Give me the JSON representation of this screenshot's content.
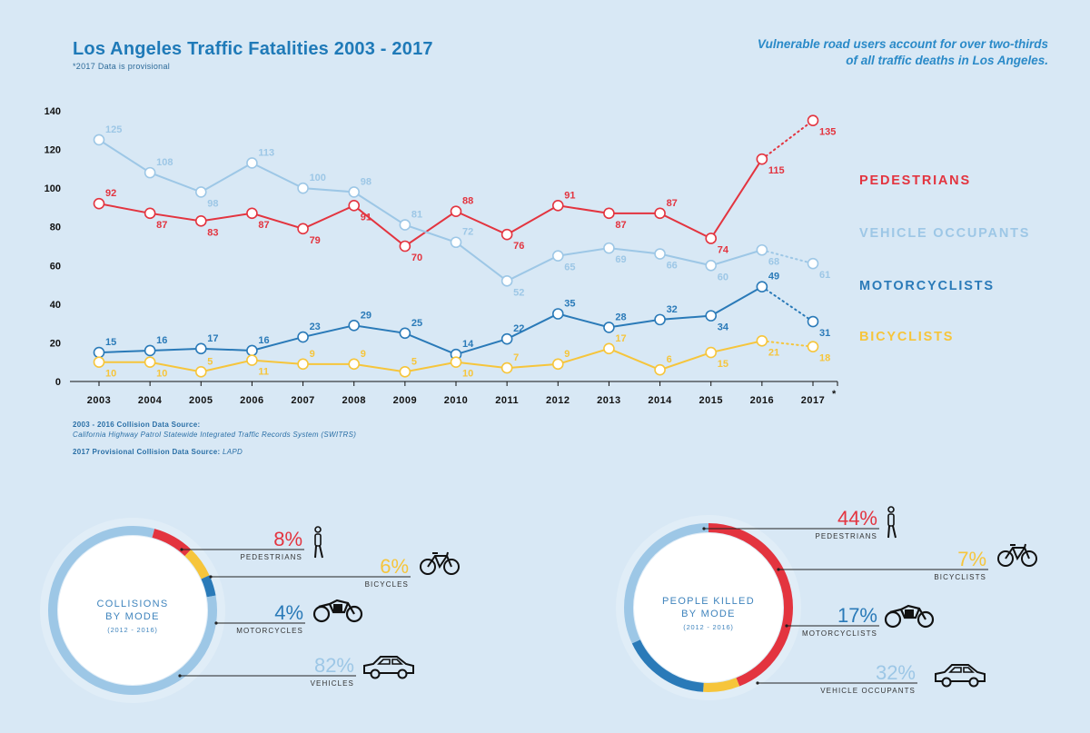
{
  "header": {
    "title": "Los Angeles Traffic Fatalities 2003 - 2017",
    "subtitle": "*2017 Data is provisional",
    "tagline_line1": "Vulnerable road users account for over two-thirds",
    "tagline_line2": "of all traffic deaths in Los Angeles."
  },
  "sources": {
    "line1": "2003 - 2016 Collision Data Source:",
    "line2": "California Highway Patrol Statewide Integrated Traffic Records System (SWITRS)",
    "line3_label": "2017 Provisional Collision Data Source:",
    "line3_value": "LAPD"
  },
  "colors": {
    "pedestrians": "#e3343f",
    "vehicle_occupants": "#9dc7e6",
    "motorcyclists": "#2a7ab8",
    "bicyclists": "#f6c53b",
    "axis": "#111111"
  },
  "chart_data": [
    {
      "type": "line",
      "title": "Los Angeles Traffic Fatalities 2003 - 2017",
      "x": [
        "2003",
        "2004",
        "2005",
        "2006",
        "2007",
        "2008",
        "2009",
        "2010",
        "2011",
        "2012",
        "2013",
        "2014",
        "2015",
        "2016",
        "2017"
      ],
      "x_footnote": "*",
      "y_ticks": [
        0,
        20,
        40,
        60,
        80,
        100,
        120,
        140
      ],
      "ylim": [
        0,
        140
      ],
      "legend_placement": "right",
      "series": [
        {
          "name": "PEDESTRIANS",
          "key": "pedestrians",
          "values": [
            92,
            87,
            83,
            87,
            79,
            91,
            70,
            88,
            76,
            91,
            87,
            87,
            74,
            115,
            135
          ],
          "labels": [
            "92",
            "87",
            "83",
            "87",
            "79",
            "91",
            "70",
            "88",
            "76",
            "91",
            "87",
            "87",
            "74",
            "115",
            "135"
          ]
        },
        {
          "name": "VEHICLE OCCUPANTS",
          "key": "vehicle_occupants",
          "values": [
            125,
            108,
            98,
            113,
            100,
            98,
            81,
            72,
            52,
            65,
            69,
            66,
            60,
            68,
            61
          ],
          "labels": [
            "125",
            "108",
            "98",
            "113",
            "100",
            "98",
            "81",
            "72",
            "52",
            "65",
            "69",
            "66",
            "60",
            "68",
            "61"
          ]
        },
        {
          "name": "MOTORCYCLISTS",
          "key": "motorcyclists",
          "values": [
            15,
            16,
            17,
            16,
            23,
            29,
            25,
            14,
            22,
            35,
            28,
            32,
            34,
            49,
            31
          ],
          "labels": [
            "15",
            "16",
            "17",
            "16",
            "23",
            "29",
            "25",
            "14",
            "22",
            "35",
            "28",
            "32",
            "34",
            "49",
            "31"
          ]
        },
        {
          "name": "BICYCLISTS",
          "key": "bicyclists",
          "values": [
            10,
            10,
            5,
            11,
            9,
            9,
            5,
            10,
            7,
            9,
            17,
            6,
            15,
            21,
            18
          ],
          "labels": [
            "10",
            "10",
            "5",
            "11",
            "9",
            "9",
            "5",
            "10",
            "7",
            "9",
            "17",
            "6",
            "15",
            "21",
            "18"
          ]
        }
      ]
    },
    {
      "type": "pie",
      "title_lines": [
        "COLLISIONS",
        "BY MODE"
      ],
      "period": "(2012 - 2016)",
      "slices": [
        {
          "label": "PEDESTRIANS",
          "value": 8,
          "pct": "8%",
          "key": "pedestrians",
          "icon": "pedestrian-icon"
        },
        {
          "label": "BICYCLES",
          "value": 6,
          "pct": "6%",
          "key": "bicyclists",
          "icon": "bicycle-icon"
        },
        {
          "label": "MOTORCYCLES",
          "value": 4,
          "pct": "4%",
          "key": "motorcyclists",
          "icon": "motorcycle-icon"
        },
        {
          "label": "VEHICLES",
          "value": 82,
          "pct": "82%",
          "key": "vehicle_occupants",
          "icon": "car-icon"
        }
      ]
    },
    {
      "type": "pie",
      "title_lines": [
        "PEOPLE KILLED",
        "BY MODE"
      ],
      "period": "(2012 - 2016)",
      "slices": [
        {
          "label": "PEDESTRIANS",
          "value": 44,
          "pct": "44%",
          "key": "pedestrians",
          "icon": "pedestrian-icon"
        },
        {
          "label": "BICYCLISTS",
          "value": 7,
          "pct": "7%",
          "key": "bicyclists",
          "icon": "bicycle-icon"
        },
        {
          "label": "MOTORCYCLISTS",
          "value": 17,
          "pct": "17%",
          "key": "motorcyclists",
          "icon": "motorcycle-icon"
        },
        {
          "label": "VEHICLE OCCUPANTS",
          "value": 32,
          "pct": "32%",
          "key": "vehicle_occupants",
          "icon": "car-icon"
        }
      ]
    }
  ]
}
